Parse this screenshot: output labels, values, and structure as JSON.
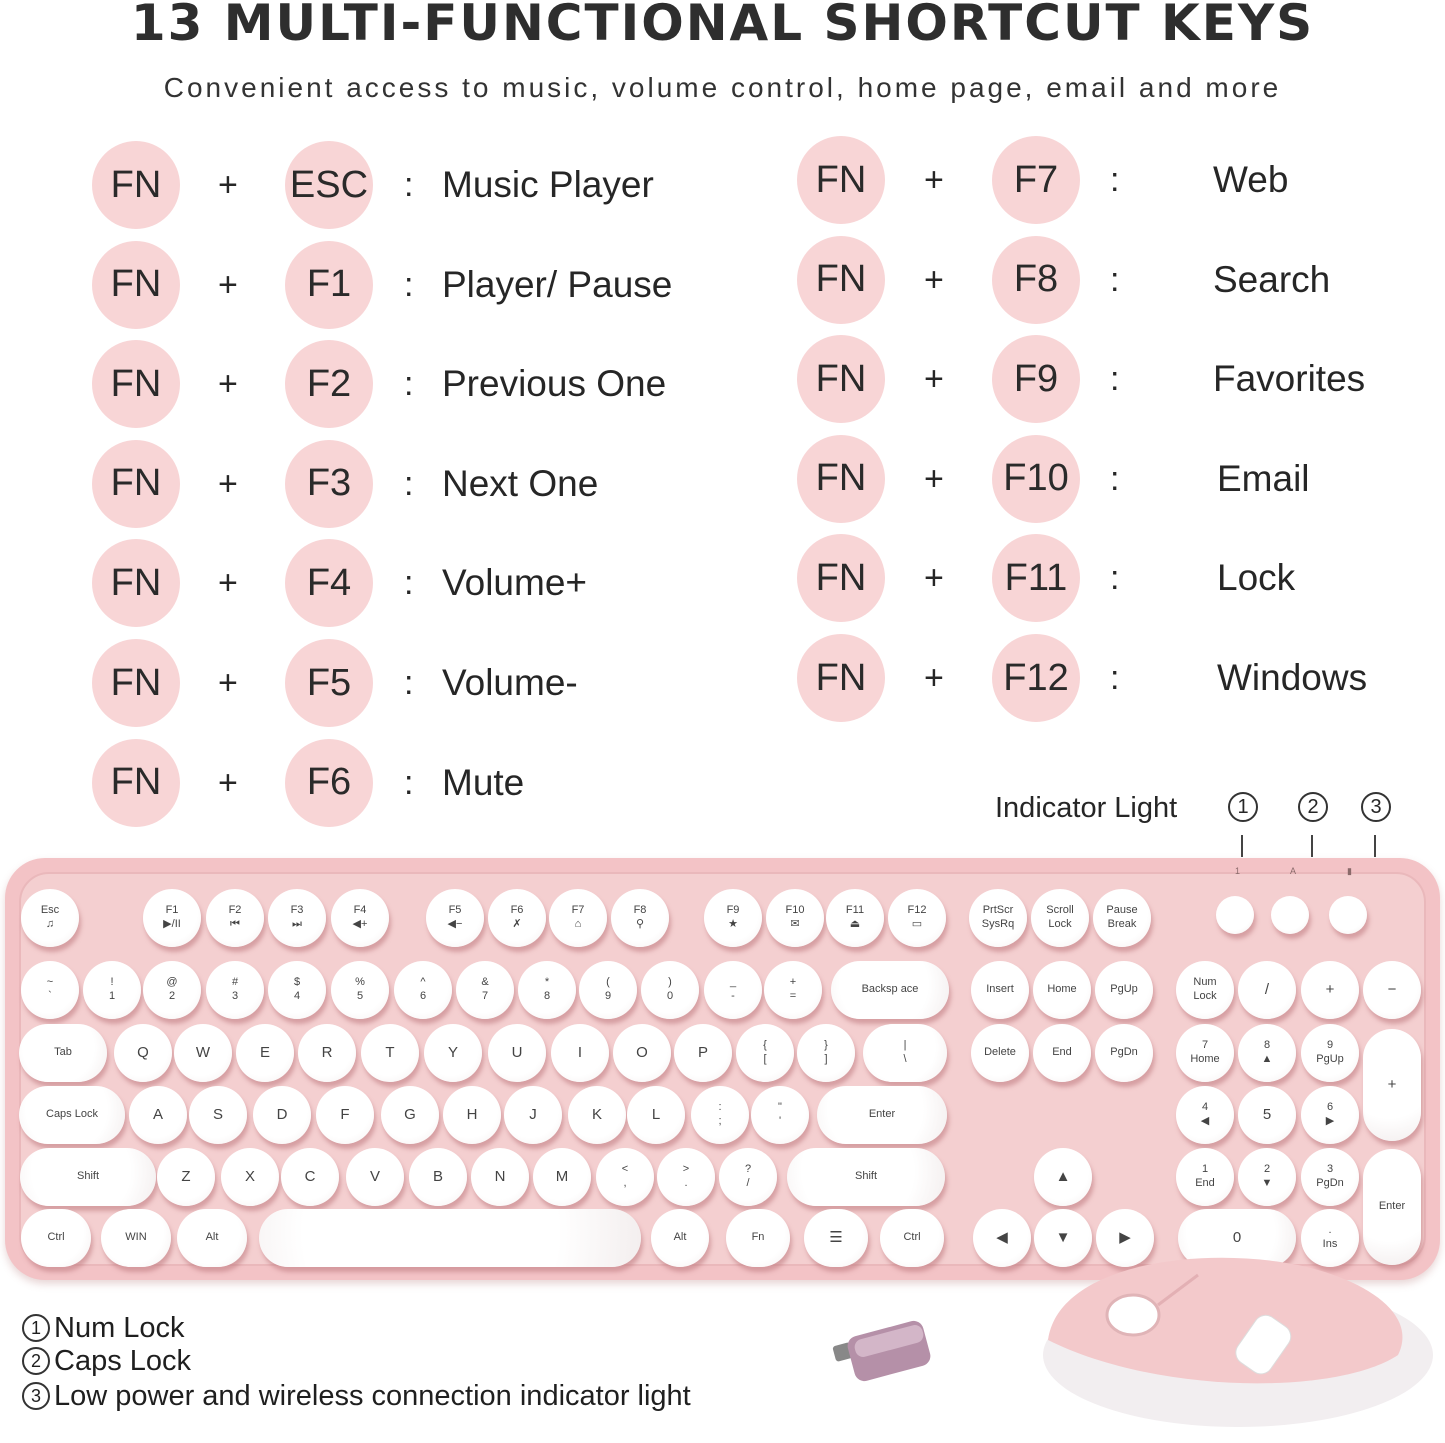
{
  "header": {
    "title": "13 MULTI-FUNCTIONAL SHORTCUT KEYS",
    "subtitle": "Convenient access to music, volume control, home page, email and more"
  },
  "shortcuts": {
    "modifier": "FN",
    "plus": "+",
    "colon": ":",
    "left": [
      {
        "key": "ESC",
        "label": "Music Player"
      },
      {
        "key": "F1",
        "label": "Player/ Pause"
      },
      {
        "key": "F2",
        "label": "Previous One"
      },
      {
        "key": "F3",
        "label": "Next One"
      },
      {
        "key": "F4",
        "label": "Volume+"
      },
      {
        "key": "F5",
        "label": "Volume-"
      },
      {
        "key": "F6",
        "label": "Mute"
      }
    ],
    "right": [
      {
        "key": "F7",
        "label": "Web"
      },
      {
        "key": "F8",
        "label": "Search"
      },
      {
        "key": "F9",
        "label": "Favorites"
      },
      {
        "key": "F10",
        "label": "Email"
      },
      {
        "key": "F11",
        "label": "Lock"
      },
      {
        "key": "F12",
        "label": "Windows"
      }
    ]
  },
  "indicator": {
    "title": "Indicator Light",
    "numbers": [
      "1",
      "2",
      "3"
    ],
    "led_marks": [
      "1",
      "A",
      "▮"
    ]
  },
  "legend": [
    {
      "n": "1",
      "text": "Num Lock"
    },
    {
      "n": "2",
      "text": "Caps Lock"
    },
    {
      "n": "3",
      "text": "Low power and wireless connection indicator light"
    }
  ],
  "colors": {
    "accent_pink": "#f8d5d6",
    "keyboard_body": "#f3c3c6",
    "keycap": "#ffffff"
  },
  "keyboard": {
    "keys": [
      [
        "Esc",
        "♫"
      ],
      [
        "F1",
        "▶/II"
      ],
      [
        "F2",
        "⏮"
      ],
      [
        "F3",
        "⏭"
      ],
      [
        "F4",
        "◀+"
      ],
      [
        "F5",
        "◀−"
      ],
      [
        "F6",
        "✗"
      ],
      [
        "F7",
        "⌂"
      ],
      [
        "F8",
        "⚲"
      ],
      [
        "F9",
        "★"
      ],
      [
        "F10",
        "✉"
      ],
      [
        "F11",
        "⏏"
      ],
      [
        "F12",
        "▭"
      ],
      [
        "PrtScr",
        "SysRq"
      ],
      [
        "Scroll",
        "Lock"
      ],
      [
        "Pause",
        "Break"
      ],
      [
        "",
        ""
      ],
      [
        "",
        ""
      ],
      [
        "",
        ""
      ],
      [
        "~",
        "`"
      ],
      [
        "!",
        "1"
      ],
      [
        "@",
        "2"
      ],
      [
        "#",
        "3"
      ],
      [
        "$",
        "4"
      ],
      [
        "%",
        "5"
      ],
      [
        "^",
        "6"
      ],
      [
        "&",
        "7"
      ],
      [
        "*",
        "8"
      ],
      [
        "(",
        "9"
      ],
      [
        ")",
        "0"
      ],
      [
        "_",
        "-"
      ],
      [
        "+",
        "="
      ],
      [
        "Backsp ace",
        ""
      ],
      [
        "Insert",
        ""
      ],
      [
        "Home",
        ""
      ],
      [
        "PgUp",
        ""
      ],
      [
        "Num",
        "Lock"
      ],
      [
        "/",
        ""
      ],
      [
        "+",
        ""
      ],
      [
        "−",
        ""
      ],
      [
        "Tab",
        ""
      ],
      [
        "Q",
        ""
      ],
      [
        "W",
        ""
      ],
      [
        "E",
        ""
      ],
      [
        "R",
        ""
      ],
      [
        "T",
        ""
      ],
      [
        "Y",
        ""
      ],
      [
        "U",
        ""
      ],
      [
        "I",
        ""
      ],
      [
        "O",
        ""
      ],
      [
        "P",
        ""
      ],
      [
        "{",
        "["
      ],
      [
        "}",
        "]"
      ],
      [
        "|",
        "\\"
      ],
      [
        "Delete",
        ""
      ],
      [
        "End",
        ""
      ],
      [
        "PgDn",
        ""
      ],
      [
        "7",
        "Home"
      ],
      [
        "8",
        "▲"
      ],
      [
        "9",
        "PgUp"
      ],
      [
        "+",
        ""
      ],
      [
        "Caps Lock",
        ""
      ],
      [
        "A",
        ""
      ],
      [
        "S",
        ""
      ],
      [
        "D",
        ""
      ],
      [
        "F",
        ""
      ],
      [
        "G",
        ""
      ],
      [
        "H",
        ""
      ],
      [
        "J",
        ""
      ],
      [
        "K",
        ""
      ],
      [
        "L",
        ""
      ],
      [
        ":",
        ";"
      ],
      [
        "\"",
        "'"
      ],
      [
        "Enter",
        ""
      ],
      [
        "4",
        "◀"
      ],
      [
        "5",
        ""
      ],
      [
        "6",
        "▶"
      ],
      [
        "Shift",
        ""
      ],
      [
        "Z",
        ""
      ],
      [
        "X",
        ""
      ],
      [
        "C",
        ""
      ],
      [
        "V",
        ""
      ],
      [
        "B",
        ""
      ],
      [
        "N",
        ""
      ],
      [
        "M",
        ""
      ],
      [
        "<",
        ","
      ],
      [
        ">",
        "."
      ],
      [
        "?",
        "/"
      ],
      [
        "Shift",
        ""
      ],
      [
        "▲",
        ""
      ],
      [
        "1",
        "End"
      ],
      [
        "2",
        "▼"
      ],
      [
        "3",
        "PgDn"
      ],
      [
        "Enter",
        ""
      ],
      [
        "Ctrl",
        ""
      ],
      [
        "WIN",
        ""
      ],
      [
        "Alt",
        ""
      ],
      [
        "",
        ""
      ],
      [
        "Alt",
        ""
      ],
      [
        "Fn",
        ""
      ],
      [
        "☰",
        ""
      ],
      [
        "Ctrl",
        ""
      ],
      [
        "◀",
        ""
      ],
      [
        "▼",
        ""
      ],
      [
        "▶",
        ""
      ],
      [
        "0",
        ""
      ],
      [
        ".",
        "Ins"
      ]
    ]
  }
}
